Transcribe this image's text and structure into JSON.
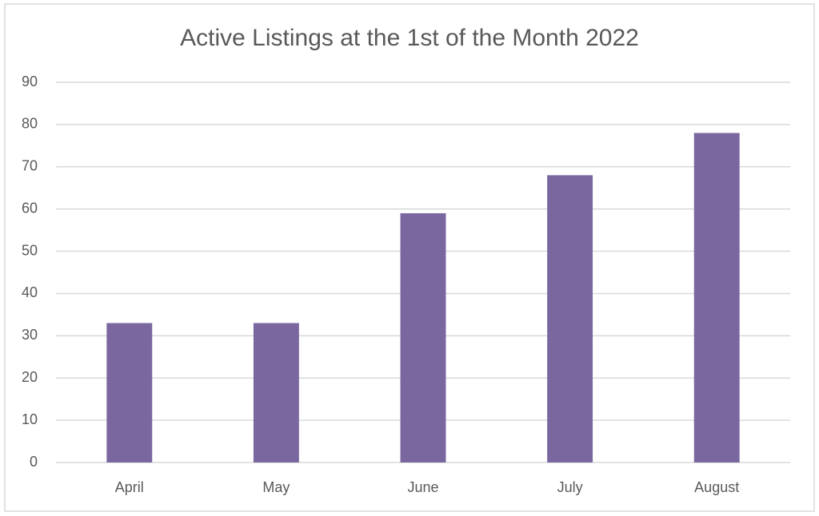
{
  "chart_data": {
    "type": "bar",
    "title": "Active Listings at the 1st of the Month 2022",
    "categories": [
      "April",
      "May",
      "June",
      "July",
      "August"
    ],
    "values": [
      33,
      33,
      59,
      68,
      78
    ],
    "color": "#7a67a0",
    "ylim": [
      0,
      90
    ],
    "yticks": [
      0,
      10,
      20,
      30,
      40,
      50,
      60,
      70,
      80,
      90
    ],
    "grid": true
  }
}
